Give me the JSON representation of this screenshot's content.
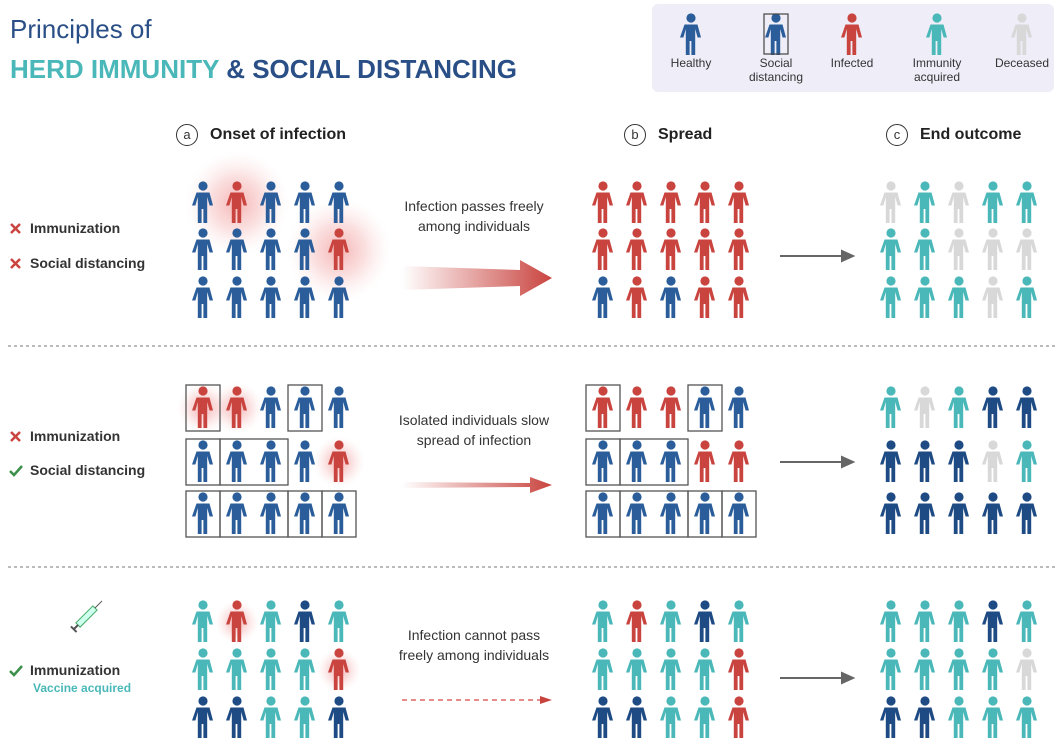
{
  "header": {
    "title_line1": "Principles of",
    "title_part1": "HERD IMMUNITY",
    "title_part2": "& SOCIAL DISTANCING"
  },
  "legend": [
    "Healthy",
    "Social distancing",
    "Infected",
    "Immunity acquired",
    "Deceased"
  ],
  "columns": [
    {
      "letter": "a",
      "title": "Onset of infection"
    },
    {
      "letter": "b",
      "title": "Spread"
    },
    {
      "letter": "c",
      "title": "End outcome"
    }
  ],
  "rows": [
    {
      "conditions": [
        "Immunization",
        "Social distancing"
      ],
      "transition": "Infection passes freely among individuals"
    },
    {
      "conditions": [
        "Immunization",
        "Social distancing"
      ],
      "transition": "Isolated individuals slow spread of infection"
    },
    {
      "conditions": [
        "Immunization"
      ],
      "subtitle": "Vaccine acquired",
      "transition": "Infection cannot pass freely among individuals"
    }
  ]
}
